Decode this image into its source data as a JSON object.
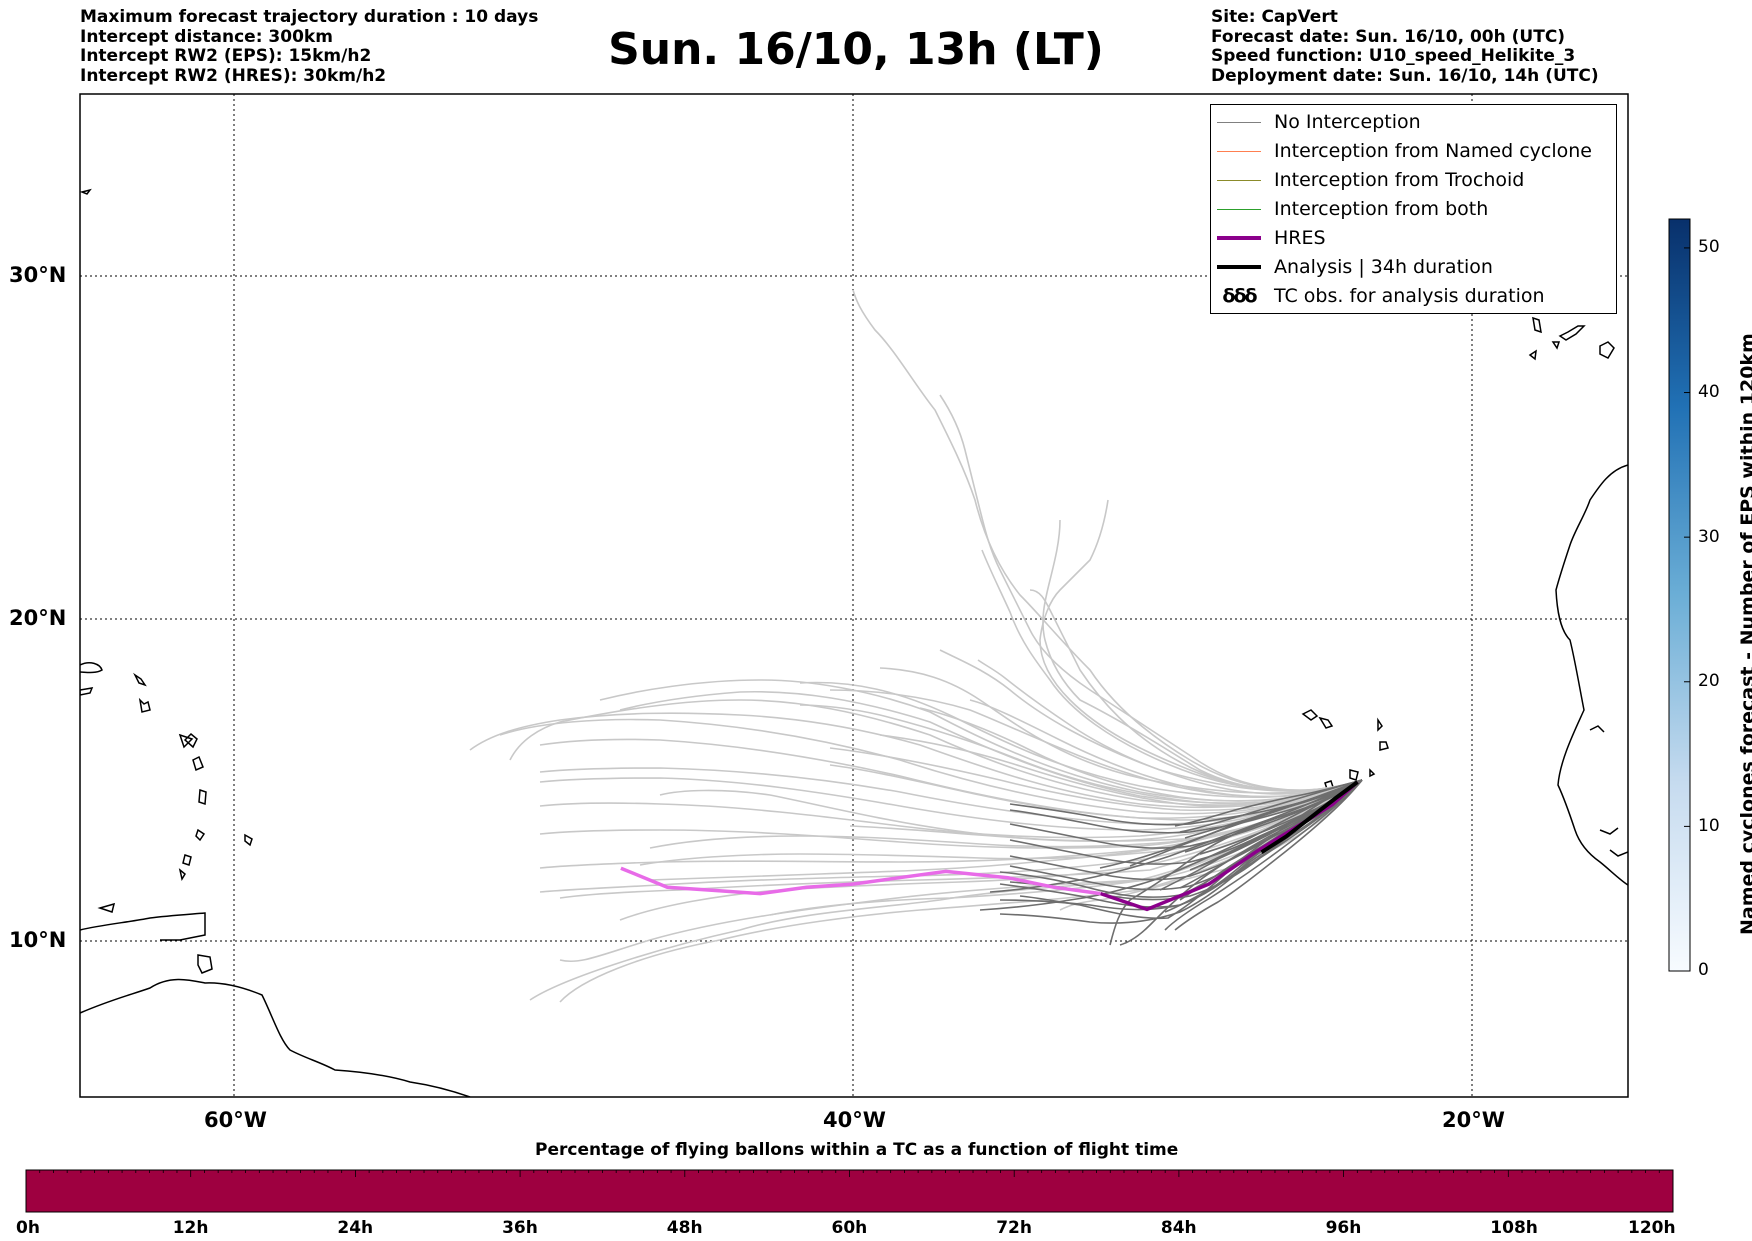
{
  "header": {
    "title": "Sun. 16/10, 13h (LT)",
    "left_lines": [
      "Maximum forecast trajectory duration : 10 days",
      "Intercept distance: 300km",
      "Intercept RW2 (EPS):  15km/h2",
      "Intercept RW2 (HRES): 30km/h2"
    ],
    "right_lines": [
      "Site: CapVert",
      "Forecast date: Sun. 16/10, 00h (UTC)",
      "Speed function: U10_speed_Helikite_3",
      "Deployment date: Sun. 16/10, 14h (UTC)"
    ]
  },
  "map": {
    "lon_range": [
      -65,
      -15
    ],
    "lat_range": [
      5.5,
      34.8
    ],
    "lon_ticks": [
      {
        "value": -60,
        "label": "60°W"
      },
      {
        "value": -40,
        "label": "40°W"
      },
      {
        "value": -20,
        "label": "20°W"
      }
    ],
    "lat_ticks": [
      {
        "value": 30,
        "label": "30°N"
      },
      {
        "value": 20,
        "label": "20°N"
      },
      {
        "value": 10,
        "label": "10°N"
      }
    ],
    "grid": "dotted",
    "site": {
      "name": "CapVert",
      "lon": -23.7,
      "lat": 15.0
    }
  },
  "legend": {
    "placement": "top-right",
    "items": [
      {
        "label": "No Interception",
        "color": "#808080",
        "style": "line-thin"
      },
      {
        "label": "Interception from Named cyclone",
        "color": "#ff7f50",
        "style": "line-thin"
      },
      {
        "label": "Interception from Trochoid",
        "color": "#8b8b2a",
        "style": "line-thin"
      },
      {
        "label": "Interception from both",
        "color": "#2ca02c",
        "style": "line-thin"
      },
      {
        "label": "HRES",
        "color": "#8b008b",
        "style": "line-thick"
      },
      {
        "label": "Analysis | 34h duration",
        "color": "#000000",
        "style": "line-thick"
      },
      {
        "label": "TC obs. for analysis duration",
        "color": "#000000",
        "style": "tc-symbol"
      }
    ]
  },
  "colorbar_right": {
    "label": "Named cyclones forecast - Number of EPS within 120km",
    "range": [
      0,
      52
    ],
    "ticks": [
      0,
      10,
      20,
      30,
      40,
      50
    ],
    "colormap": "Blues"
  },
  "colorbar_bottom": {
    "title": "Percentage of flying ballons within a TC as a function of flight time",
    "ticks": [
      "0h",
      "12h",
      "24h",
      "36h",
      "48h",
      "60h",
      "72h",
      "84h",
      "96h",
      "108h",
      "120h"
    ],
    "fill_color": "#9e0040"
  },
  "chart_data": {
    "type": "line",
    "series": [
      {
        "name": "HRES",
        "color": "#8b008b",
        "x": [
          -23.7,
          -24.5,
          -25.5,
          -27,
          -28.5,
          -30.5,
          -32,
          -33.5,
          -35,
          -37,
          -38.5,
          -40,
          -41.5,
          -43,
          -44.5,
          -46,
          -47.5
        ],
        "y": [
          15.0,
          14.3,
          13.7,
          12.8,
          11.8,
          11.0,
          11.5,
          11.7,
          12.0,
          12.2,
          12.0,
          11.8,
          11.7,
          11.5,
          11.6,
          11.7,
          12.3
        ]
      },
      {
        "name": "Analysis | 34h duration",
        "color": "#000000",
        "x": [
          -23.7,
          -24.4,
          -25.2,
          -26.0,
          -26.8
        ],
        "y": [
          15.0,
          14.5,
          13.9,
          13.3,
          12.8
        ]
      }
    ]
  }
}
